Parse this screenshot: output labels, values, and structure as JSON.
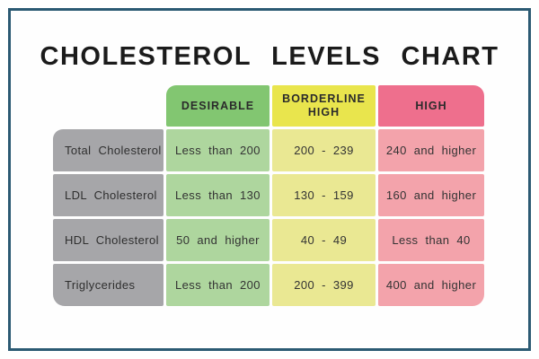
{
  "title": "CHOLESTEROL LEVELS CHART",
  "colors": {
    "frame_border": "#2b5a73",
    "header_desirable": "#82c671",
    "header_borderline_high": "#e9e54d",
    "header_high": "#ee6f8d",
    "cell_desirable": "#aed69e",
    "cell_borderline_high": "#eae893",
    "cell_high": "#f3a3ab",
    "row_label_bg": "#a6a6a9"
  },
  "chart_data": {
    "type": "table",
    "title": "CHOLESTEROL LEVELS CHART",
    "column_headers": [
      "DESIRABLE",
      "BORDERLINE HIGH",
      "HIGH"
    ],
    "rows": [
      {
        "label": "Total Cholesterol",
        "values": [
          "Less than 200",
          "200 - 239",
          "240 and higher"
        ]
      },
      {
        "label": "LDL Cholesterol",
        "values": [
          "Less than 130",
          "130 - 159",
          "160 and higher"
        ]
      },
      {
        "label": "HDL Cholesterol",
        "values": [
          "50 and higher",
          "40 - 49",
          "Less than 40"
        ]
      },
      {
        "label": "Triglycerides",
        "values": [
          "Less than 200",
          "200 - 399",
          "400 and higher"
        ]
      }
    ]
  }
}
